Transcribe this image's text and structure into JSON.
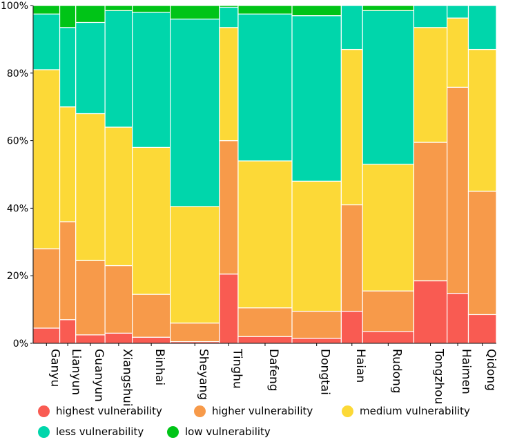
{
  "chart_data": {
    "type": "bar",
    "stacked": true,
    "variable_width": true,
    "categories": [
      "Ganyu",
      "Lianyun",
      "Guanyun",
      "Xiangshui",
      "Binhai",
      "Sheyang",
      "Tinghu",
      "Dafeng",
      "Dongtai",
      "Haian",
      "Rudong",
      "Tongzhou",
      "Haimen",
      "Qidong"
    ],
    "widths": [
      40,
      24,
      44,
      41,
      57,
      74,
      28,
      81,
      74,
      32,
      77,
      50,
      32,
      42
    ],
    "series": [
      {
        "name": "highest vulnerability",
        "color": "#f95b52",
        "values": [
          4.5,
          7,
          2.5,
          3,
          1.8,
          0.5,
          20.5,
          2,
          1.5,
          9.5,
          3.5,
          18.5,
          14.8,
          8.5
        ]
      },
      {
        "name": "higher vulnerability",
        "color": "#f79a4a",
        "values": [
          23.5,
          29,
          22,
          20,
          12.7,
          5.5,
          39.5,
          8.5,
          8,
          31.5,
          12,
          41,
          61,
          36.5
        ]
      },
      {
        "name": "medium vulnerability",
        "color": "#fcd937",
        "values": [
          53,
          34,
          43.5,
          41,
          43.5,
          34.5,
          33.5,
          43.5,
          38.5,
          46,
          37.5,
          34,
          20.5,
          42
        ]
      },
      {
        "name": "less vulnerability",
        "color": "#00d6ab",
        "values": [
          16.5,
          23.5,
          27,
          34.5,
          40,
          55.5,
          6,
          43.5,
          49,
          13,
          45.5,
          6.5,
          3.7,
          13
        ]
      },
      {
        "name": "low vulnerability",
        "color": "#00c417",
        "values": [
          2.5,
          6.5,
          5,
          1.5,
          2,
          4,
          0.5,
          2.5,
          3,
          0,
          1.5,
          0,
          0,
          0
        ]
      }
    ],
    "y_ticks": [
      "0%",
      "20%",
      "40%",
      "60%",
      "80%",
      "100%"
    ],
    "ylim": [
      0,
      100
    ],
    "title": "",
    "xlabel": "",
    "ylabel": "",
    "legend_position": "bottom"
  }
}
